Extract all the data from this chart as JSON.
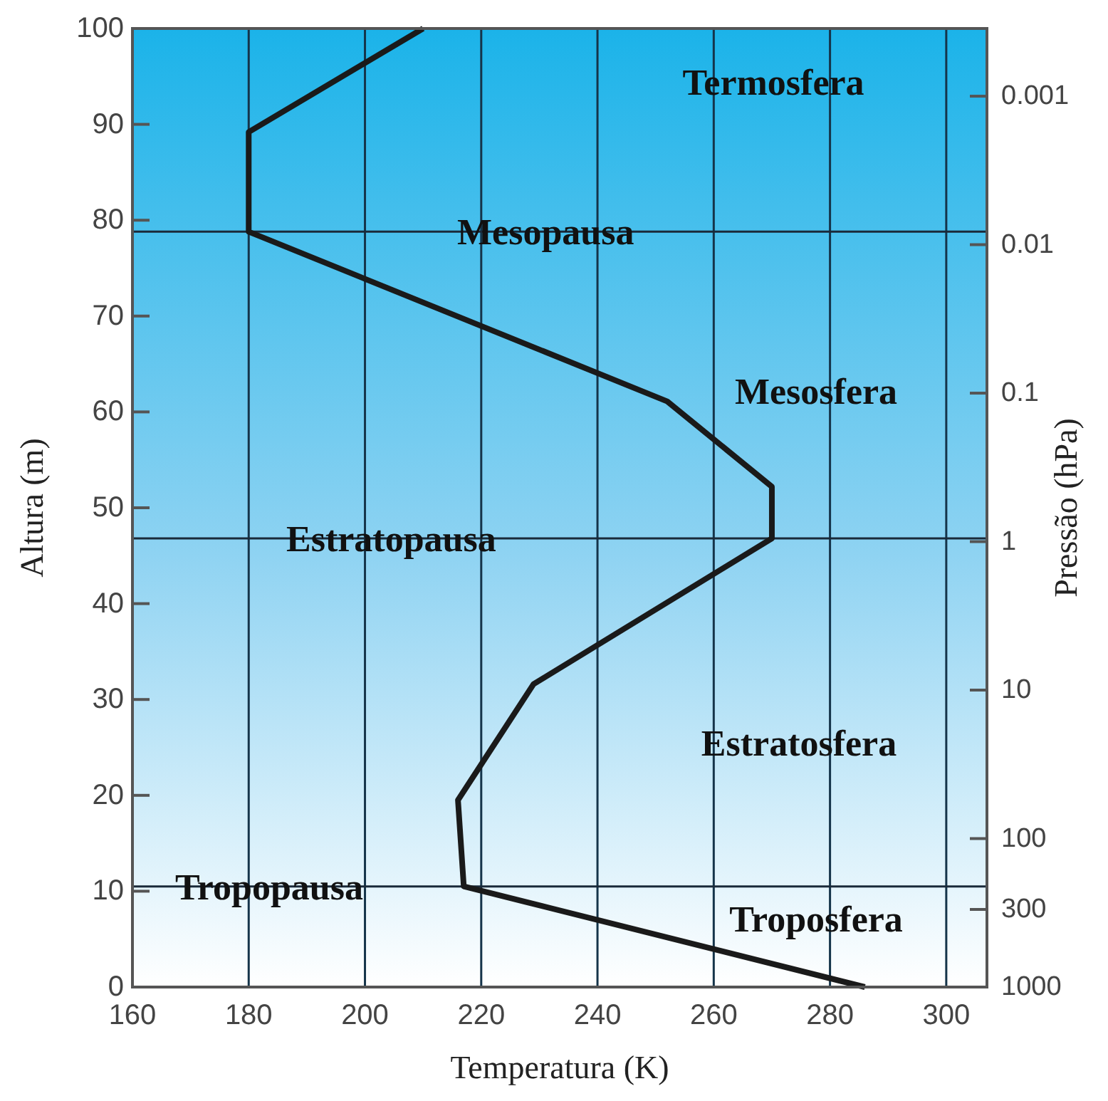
{
  "chart_data": {
    "type": "line",
    "xlabel": "Temperatura (K)",
    "ylabel": "Altura (m)",
    "y2label": "Pressão (hPa)",
    "xlim": [
      160,
      307
    ],
    "xticks": [
      160,
      180,
      200,
      220,
      240,
      260,
      280,
      300
    ],
    "ylim": [
      0,
      100
    ],
    "yticks": [
      0,
      10,
      20,
      30,
      40,
      50,
      60,
      70,
      80,
      90,
      100
    ],
    "y2lim": [
      1000,
      0.00035
    ],
    "y2ticks": [
      0.001,
      0.01,
      0.1,
      1,
      10,
      100,
      300,
      1000
    ],
    "log": "y2",
    "grid": "x",
    "marker": "none",
    "line_style": "solid",
    "series": [
      {
        "color": "#1a1a1a",
        "x": [
          286,
          217,
          216,
          229,
          270,
          270,
          252,
          180,
          180,
          210
        ],
        "values": [
          0,
          10.5,
          19.5,
          31.6,
          46.8,
          52.2,
          61.1,
          78.8,
          89.2,
          100
        ]
      }
    ],
    "ref_lines": [
      {
        "axis": "y",
        "value": 78.8,
        "label": "Mesopausa",
        "color": "#1a2a3a"
      },
      {
        "axis": "y",
        "value": 46.8,
        "label": "Estratopausa",
        "color": "#1a2a3a"
      },
      {
        "axis": "y",
        "value": 10.5,
        "label": "Tropopausa",
        "color": "#1a2a3a"
      }
    ],
    "annotations": [
      "Termosfera",
      "Mesosfera",
      "Estratosfera",
      "Troposfera"
    ]
  }
}
